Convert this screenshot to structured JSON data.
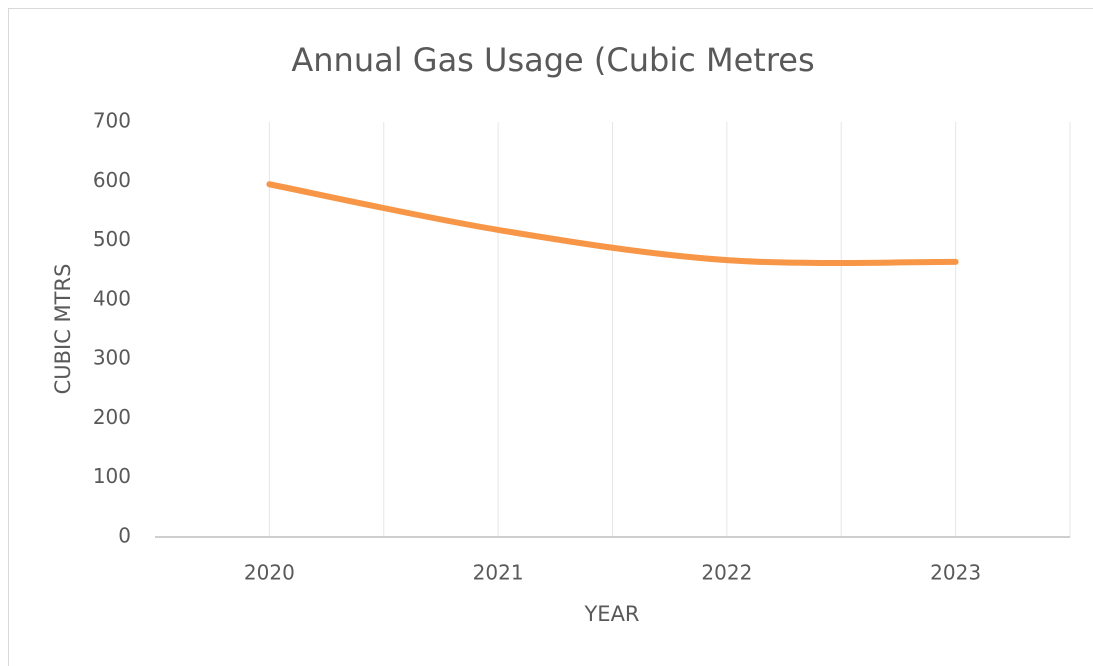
{
  "chart_data": {
    "type": "line",
    "title": "Annual Gas Usage (Cubic Metres",
    "x_label": "YEAR",
    "y_label": "CUBIC MTRS",
    "categories": [
      "2020",
      "2021",
      "2022",
      "2023"
    ],
    "values": [
      595,
      518,
      467,
      464
    ],
    "color": "#f79646",
    "ylim": [
      0,
      700
    ],
    "yticks": [
      0,
      100,
      200,
      300,
      400,
      500,
      600,
      700
    ],
    "grid": true
  }
}
